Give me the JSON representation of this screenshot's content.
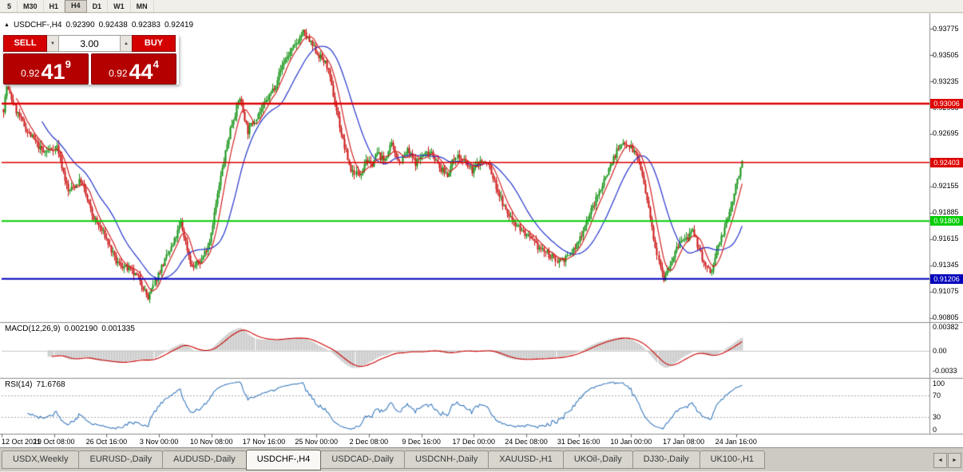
{
  "colors": {
    "up": "#119111",
    "down": "#cc1111",
    "ma_fast": "#d42222",
    "ma_slow": "#2233cc",
    "macd_hist": "#bfbfbf",
    "macd_signal": "#cc0000",
    "rsi_line": "#3b7bbf",
    "separator": "#8c8c8c",
    "tick": "#666666"
  },
  "toolbar": {
    "timeframes": [
      "5",
      "M30",
      "H1",
      "H4",
      "D1",
      "W1",
      "MN"
    ],
    "active": "H4"
  },
  "quote_header": {
    "collapse_icon": "▲",
    "symbol": "USDCHF-,H4",
    "open": "0.92390",
    "high": "0.92438",
    "low": "0.92383",
    "close": "0.92419"
  },
  "trade_panel": {
    "sell_label": "SELL",
    "buy_label": "BUY",
    "volume": "3.00",
    "spin_down": "▼",
    "spin_up": "▲",
    "sell_price": {
      "prefix": "0.92",
      "big": "41",
      "sup": "9"
    },
    "buy_price": {
      "prefix": "0.92",
      "big": "44",
      "sup": "4"
    }
  },
  "price_axis": {
    "labels": [
      "0.93775",
      "0.93505",
      "0.93235",
      "0.92965",
      "0.92695",
      "0.92155",
      "0.91885",
      "0.91615",
      "0.91345",
      "0.91075",
      "0.90805"
    ],
    "line_labels": [
      {
        "text": "0.93006",
        "color": "#dd0000"
      },
      {
        "text": "0.92403",
        "color": "#dd0000"
      },
      {
        "text": "0.91800",
        "color": "#00cc00"
      },
      {
        "text": "0.91206",
        "color": "#0000bb"
      }
    ]
  },
  "indicators": {
    "macd": {
      "label": "MACD(12,26,9)",
      "value_main": "0.002190",
      "value_signal": "0.001335",
      "axis_labels": [
        "0.00382",
        "0.00",
        "-0.0033"
      ]
    },
    "rsi": {
      "label": "RSI(14)",
      "value": "71.6768",
      "axis_labels": [
        "100",
        "70",
        "30",
        "0"
      ]
    }
  },
  "time_axis": {
    "labels": [
      "12 Oct 2021",
      "19 Oct 08:00",
      "26 Oct 16:00",
      "3 Nov 00:00",
      "10 Nov 08:00",
      "17 Nov 16:00",
      "25 Nov 00:00",
      "2 Dec 08:00",
      "9 Dec 16:00",
      "17 Dec 00:00",
      "24 Dec 08:00",
      "31 Dec 16:00",
      "10 Jan 00:00",
      "17 Jan 08:00",
      "24 Jan 16:00"
    ]
  },
  "tabs": {
    "items": [
      "USDX,Weekly",
      "EURUSD-,Daily",
      "AUDUSD-,Daily",
      "USDCHF-,H4",
      "USDCAD-,Daily",
      "USDCNH-,Daily",
      "XAUUSD-,H1",
      "UKOil-,Daily",
      "DJ30-,Daily",
      "UK100-,H1"
    ],
    "active": "USDCHF-,H4",
    "nav_left": "◄",
    "nav_right": "►"
  },
  "chart_data": {
    "type": "candlestick+indicators",
    "symbol": "USDCHF-",
    "timeframe": "H4",
    "ohlc_current": {
      "open": 0.9239,
      "high": 0.92438,
      "low": 0.92383,
      "close": 0.92419
    },
    "price_range": {
      "min": 0.90795,
      "max": 0.93825
    },
    "h_lines": [
      {
        "price": 0.93006,
        "color": "#dd0000",
        "width": 2.5
      },
      {
        "price": 0.92403,
        "color": "#dd0000",
        "width": 1.5
      },
      {
        "price": 0.918,
        "color": "#00cc00",
        "width": 2
      },
      {
        "price": 0.91206,
        "color": "#0000bb",
        "width": 2
      }
    ],
    "candles": {
      "n": 460,
      "seed": 7,
      "volatility": 0.00035,
      "wick": 0.0008,
      "last_close": 0.92419,
      "anchors": [
        [
          0,
          0.9295
        ],
        [
          2,
          0.9318
        ],
        [
          8,
          0.9293
        ],
        [
          15,
          0.9272
        ],
        [
          25,
          0.925
        ],
        [
          33,
          0.9257
        ],
        [
          40,
          0.921
        ],
        [
          48,
          0.9222
        ],
        [
          55,
          0.9186
        ],
        [
          63,
          0.9165
        ],
        [
          70,
          0.9138
        ],
        [
          78,
          0.913
        ],
        [
          85,
          0.912
        ],
        [
          90,
          0.91
        ],
        [
          97,
          0.913
        ],
        [
          105,
          0.9155
        ],
        [
          110,
          0.9178
        ],
        [
          117,
          0.9132
        ],
        [
          123,
          0.914
        ],
        [
          128,
          0.916
        ],
        [
          135,
          0.9225
        ],
        [
          141,
          0.9275
        ],
        [
          147,
          0.9307
        ],
        [
          152,
          0.9272
        ],
        [
          157,
          0.9288
        ],
        [
          162,
          0.93
        ],
        [
          168,
          0.9318
        ],
        [
          174,
          0.9344
        ],
        [
          181,
          0.936
        ],
        [
          186,
          0.9374
        ],
        [
          191,
          0.9362
        ],
        [
          196,
          0.935
        ],
        [
          201,
          0.934
        ],
        [
          206,
          0.9302
        ],
        [
          211,
          0.9262
        ],
        [
          216,
          0.9232
        ],
        [
          221,
          0.9228
        ],
        [
          225,
          0.9244
        ],
        [
          228,
          0.9236
        ],
        [
          232,
          0.925
        ],
        [
          236,
          0.9242
        ],
        [
          241,
          0.9258
        ],
        [
          246,
          0.924
        ],
        [
          251,
          0.9252
        ],
        [
          256,
          0.924
        ],
        [
          261,
          0.9248
        ],
        [
          266,
          0.9252
        ],
        [
          271,
          0.9234
        ],
        [
          276,
          0.9228
        ],
        [
          281,
          0.9248
        ],
        [
          286,
          0.924
        ],
        [
          291,
          0.9232
        ],
        [
          296,
          0.9242
        ],
        [
          301,
          0.9238
        ],
        [
          306,
          0.9215
        ],
        [
          312,
          0.919
        ],
        [
          318,
          0.9178
        ],
        [
          325,
          0.9165
        ],
        [
          331,
          0.9155
        ],
        [
          337,
          0.9148
        ],
        [
          343,
          0.914
        ],
        [
          350,
          0.9142
        ],
        [
          356,
          0.9155
        ],
        [
          362,
          0.918
        ],
        [
          368,
          0.9202
        ],
        [
          375,
          0.923
        ],
        [
          381,
          0.9252
        ],
        [
          386,
          0.9262
        ],
        [
          390,
          0.9256
        ],
        [
          395,
          0.9242
        ],
        [
          400,
          0.92
        ],
        [
          405,
          0.9155
        ],
        [
          410,
          0.9122
        ],
        [
          415,
          0.914
        ],
        [
          420,
          0.9158
        ],
        [
          424,
          0.9162
        ],
        [
          428,
          0.9168
        ],
        [
          432,
          0.9152
        ],
        [
          436,
          0.9132
        ],
        [
          440,
          0.9128
        ],
        [
          444,
          0.9155
        ],
        [
          448,
          0.9172
        ],
        [
          452,
          0.9195
        ],
        [
          456,
          0.9222
        ],
        [
          459,
          0.92419
        ]
      ]
    },
    "moving_averages": {
      "fast_period": 8,
      "slow_period": 24
    },
    "macd": {
      "fast": 12,
      "slow": 26,
      "signal": 9,
      "scale_max": 0.0045,
      "scale_min": -0.0045,
      "current_main": 0.00219,
      "current_signal": 0.001335
    },
    "rsi": {
      "period": 14,
      "current": 71.6768,
      "levels": [
        70,
        30
      ],
      "scale": [
        0,
        100
      ]
    }
  }
}
